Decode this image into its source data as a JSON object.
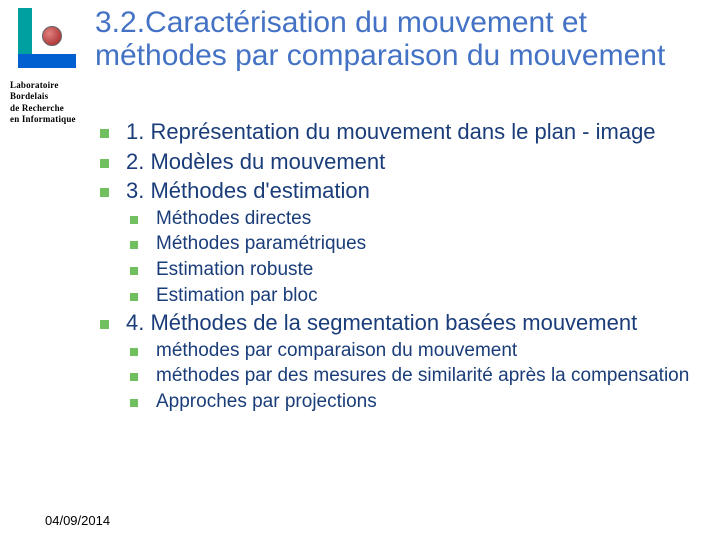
{
  "logo_caption_l1": "Laboratoire Bordelais",
  "logo_caption_l2": "de Recherche",
  "logo_caption_l3": "en Informatique",
  "title": "3.2.Caractérisation du mouvement et méthodes par comparaison du mouvement",
  "items": {
    "i1": "1. Représentation du mouvement dans le plan - image",
    "i2": "2. Modèles du mouvement",
    "i3": "3. Méthodes d'estimation",
    "i3a": "Méthodes directes",
    "i3b": "Méthodes paramétriques",
    "i3c": "Estimation robuste",
    "i3d": "Estimation par bloc",
    "i4": "4. Méthodes de la segmentation basées mouvement",
    "i4a": "méthodes par comparaison du mouvement",
    "i4b": "méthodes par des mesures de similarité après la compensation",
    "i4c": "Approches par projections"
  },
  "footer_date": "04/09/2014",
  "colors": {
    "title_color": "#4472c4",
    "text_color": "#1a3d7a",
    "bullet_color": "#70c060",
    "background": "#ffffff"
  }
}
